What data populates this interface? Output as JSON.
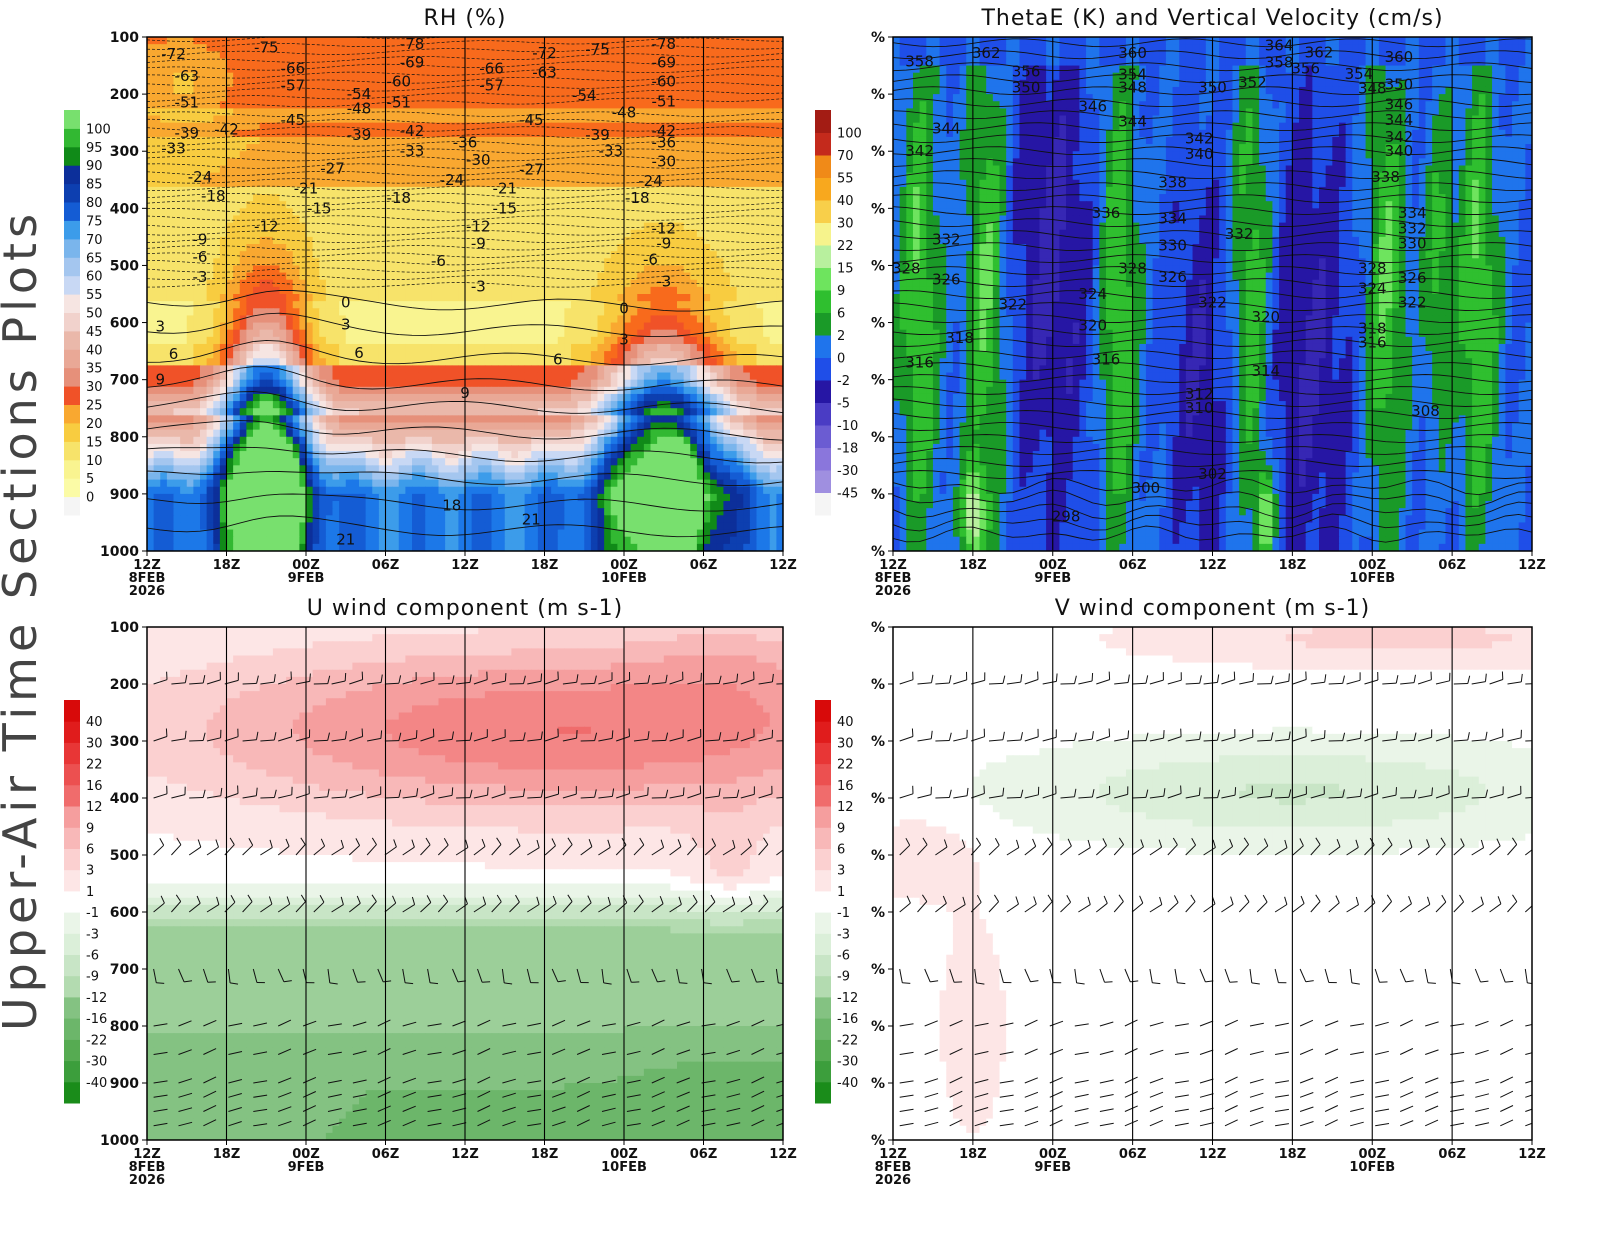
{
  "page": {
    "title": "Upper-Air Time Sections Plots"
  },
  "colors": {
    "rh": [
      "#f5f5f5",
      "#fbfba6",
      "#f9f490",
      "#f7e36a",
      "#f8cc40",
      "#f9a830",
      "#f86a1c",
      "#f05228",
      "#e6907a",
      "#e9a896",
      "#eab8aa",
      "#f1d2cc",
      "#f6e5e2",
      "#c8d8f4",
      "#a4c6ef",
      "#7ab5ec",
      "#3c9cea",
      "#1c78e8",
      "#145cd4",
      "#0d3fb0",
      "#0c2f9a",
      "#108a18",
      "#32b832",
      "#78e06e"
    ],
    "theta": [
      "#f5f5f5",
      "#9f8fe0",
      "#8a76dc",
      "#6b5cd2",
      "#4a3cc4",
      "#3627b4",
      "#2616a4",
      "#1f4ee8",
      "#1f74ec",
      "#1a9a28",
      "#2fbf2f",
      "#6ee45e",
      "#b8f09e",
      "#f6f38c",
      "#f8e470",
      "#f8cf4a",
      "#f8a81e",
      "#f08a18",
      "#c42a1c",
      "#a31c14"
    ],
    "div": [
      "#1a8c1a",
      "#3c9e3c",
      "#56ab52",
      "#6cb66a",
      "#84c282",
      "#9ccf99",
      "#b3dbb0",
      "#c8e5c6",
      "#dbefd9",
      "#eaf5e8",
      "#ffffff",
      "#fde6e6",
      "#fbd0d0",
      "#f8b8b8",
      "#f59e9e",
      "#f38686",
      "#f06c6c",
      "#ec5050",
      "#e83636",
      "#e01c1c",
      "#d80a0a"
    ]
  },
  "time_axis": {
    "ticks": [
      {
        "label": "12Z",
        "sub": "8FEB",
        "sub2": "2026"
      },
      {
        "label": "18Z",
        "sub": "",
        "sub2": ""
      },
      {
        "label": "00Z",
        "sub": "9FEB",
        "sub2": ""
      },
      {
        "label": "06Z",
        "sub": "",
        "sub2": ""
      },
      {
        "label": "12Z",
        "sub": "",
        "sub2": ""
      },
      {
        "label": "18Z",
        "sub": "",
        "sub2": ""
      },
      {
        "label": "00Z",
        "sub": "10FEB",
        "sub2": ""
      },
      {
        "label": "06Z",
        "sub": "",
        "sub2": ""
      },
      {
        "label": "12Z",
        "sub": "",
        "sub2": ""
      }
    ]
  },
  "chart_data": [
    {
      "id": "rh",
      "type": "heatmap",
      "title": "RH (%)",
      "xlabel": "",
      "ylabel": "",
      "x_range_hours": [
        0,
        48
      ],
      "ylim": [
        1000,
        100
      ],
      "y_ticks": [
        "100",
        "200",
        "300",
        "400",
        "500",
        "600",
        "700",
        "800",
        "900",
        "1000"
      ],
      "colorbar": {
        "levels": [
          "0",
          "5",
          "10",
          "15",
          "20",
          "25",
          "30",
          "35",
          "40",
          "45",
          "50",
          "55",
          "60",
          "65",
          "70",
          "75",
          "80",
          "85",
          "90",
          "95",
          "100"
        ]
      },
      "contour_labels": [
        {
          "text": "-72",
          "t": 2,
          "p": 130
        },
        {
          "text": "-75",
          "t": 9,
          "p": 118
        },
        {
          "text": "-78",
          "t": 20,
          "p": 112
        },
        {
          "text": "-72",
          "t": 30,
          "p": 128
        },
        {
          "text": "-75",
          "t": 34,
          "p": 122
        },
        {
          "text": "-78",
          "t": 39,
          "p": 112
        },
        {
          "text": "-63",
          "t": 3,
          "p": 168
        },
        {
          "text": "-66",
          "t": 11,
          "p": 155
        },
        {
          "text": "-69",
          "t": 20,
          "p": 145
        },
        {
          "text": "-66",
          "t": 26,
          "p": 155
        },
        {
          "text": "-63",
          "t": 30,
          "p": 162
        },
        {
          "text": "-69",
          "t": 39,
          "p": 145
        },
        {
          "text": "-57",
          "t": 11,
          "p": 185
        },
        {
          "text": "-60",
          "t": 19,
          "p": 178
        },
        {
          "text": "-57",
          "t": 26,
          "p": 185
        },
        {
          "text": "-60",
          "t": 39,
          "p": 178
        },
        {
          "text": "-51",
          "t": 3,
          "p": 215
        },
        {
          "text": "-54",
          "t": 16,
          "p": 200
        },
        {
          "text": "-51",
          "t": 19,
          "p": 215
        },
        {
          "text": "-54",
          "t": 33,
          "p": 202
        },
        {
          "text": "-48",
          "t": 36,
          "p": 232
        },
        {
          "text": "-51",
          "t": 39,
          "p": 213
        },
        {
          "text": "-48",
          "t": 16,
          "p": 225
        },
        {
          "text": "-45",
          "t": 11,
          "p": 245
        },
        {
          "text": "-45",
          "t": 29,
          "p": 245
        },
        {
          "text": "-39",
          "t": 3,
          "p": 268
        },
        {
          "text": "-42",
          "t": 6,
          "p": 262
        },
        {
          "text": "-39",
          "t": 16,
          "p": 272
        },
        {
          "text": "-42",
          "t": 20,
          "p": 265
        },
        {
          "text": "-39",
          "t": 34,
          "p": 272
        },
        {
          "text": "-42",
          "t": 39,
          "p": 265
        },
        {
          "text": "-33",
          "t": 2,
          "p": 295
        },
        {
          "text": "-36",
          "t": 24,
          "p": 285
        },
        {
          "text": "-33",
          "t": 20,
          "p": 300
        },
        {
          "text": "-33",
          "t": 35,
          "p": 300
        },
        {
          "text": "-36",
          "t": 39,
          "p": 285
        },
        {
          "text": "-30",
          "t": 25,
          "p": 315
        },
        {
          "text": "-30",
          "t": 39,
          "p": 318
        },
        {
          "text": "-27",
          "t": 14,
          "p": 330
        },
        {
          "text": "-27",
          "t": 29,
          "p": 332
        },
        {
          "text": "-24",
          "t": 4,
          "p": 345
        },
        {
          "text": "-24",
          "t": 23,
          "p": 350
        },
        {
          "text": "-24",
          "t": 38,
          "p": 352
        },
        {
          "text": "-21",
          "t": 12,
          "p": 365
        },
        {
          "text": "-21",
          "t": 27,
          "p": 365
        },
        {
          "text": "-18",
          "t": 5,
          "p": 378
        },
        {
          "text": "-18",
          "t": 19,
          "p": 382
        },
        {
          "text": "-18",
          "t": 37,
          "p": 382
        },
        {
          "text": "-15",
          "t": 13,
          "p": 400
        },
        {
          "text": "-15",
          "t": 27,
          "p": 400
        },
        {
          "text": "-12",
          "t": 9,
          "p": 432
        },
        {
          "text": "-12",
          "t": 25,
          "p": 432
        },
        {
          "text": "-12",
          "t": 39,
          "p": 435
        },
        {
          "text": "-9",
          "t": 4,
          "p": 455
        },
        {
          "text": "-9",
          "t": 25,
          "p": 462
        },
        {
          "text": "-9",
          "t": 39,
          "p": 462
        },
        {
          "text": "-6",
          "t": 4,
          "p": 485
        },
        {
          "text": "-6",
          "t": 22,
          "p": 492
        },
        {
          "text": "-6",
          "t": 38,
          "p": 490
        },
        {
          "text": "-3",
          "t": 4,
          "p": 520
        },
        {
          "text": "-3",
          "t": 25,
          "p": 537
        },
        {
          "text": "-3",
          "t": 39,
          "p": 528
        },
        {
          "text": "0",
          "t": 15,
          "p": 565
        },
        {
          "text": "0",
          "t": 36,
          "p": 575
        },
        {
          "text": "3",
          "t": 1,
          "p": 607
        },
        {
          "text": "3",
          "t": 15,
          "p": 603
        },
        {
          "text": "3",
          "t": 36,
          "p": 630
        },
        {
          "text": "6",
          "t": 2,
          "p": 655
        },
        {
          "text": "6",
          "t": 16,
          "p": 653
        },
        {
          "text": "6",
          "t": 31,
          "p": 665
        },
        {
          "text": "9",
          "t": 1,
          "p": 700
        },
        {
          "text": "9",
          "t": 24,
          "p": 723
        },
        {
          "text": "18",
          "t": 23,
          "p": 920
        },
        {
          "text": "21",
          "t": 29,
          "p": 945
        },
        {
          "text": "21",
          "t": 15,
          "p": 980
        }
      ]
    },
    {
      "id": "thetae",
      "type": "heatmap",
      "title": "ThetaE (K) and Vertical Velocity (cm/s)",
      "xlabel": "",
      "ylabel": "",
      "x_range_hours": [
        0,
        48
      ],
      "ylim": [
        1000,
        100
      ],
      "y_ticks": [
        "%",
        "%",
        "%",
        "%",
        "%",
        "%",
        "%",
        "%",
        "%",
        "%"
      ],
      "colorbar": {
        "levels": [
          "-45",
          "-30",
          "-18",
          "-10",
          "-5",
          "-2",
          "0",
          "2",
          "6",
          "9",
          "15",
          "22",
          "30",
          "40",
          "55",
          "70",
          "100"
        ]
      },
      "contour_labels": [
        {
          "text": "364",
          "t": 29,
          "p": 115
        },
        {
          "text": "362",
          "t": 7,
          "p": 128
        },
        {
          "text": "360",
          "t": 18,
          "p": 128
        },
        {
          "text": "362",
          "t": 32,
          "p": 127
        },
        {
          "text": "360",
          "t": 38,
          "p": 135
        },
        {
          "text": "358",
          "t": 2,
          "p": 143
        },
        {
          "text": "356",
          "t": 10,
          "p": 160
        },
        {
          "text": "358",
          "t": 29,
          "p": 145
        },
        {
          "text": "356",
          "t": 31,
          "p": 155
        },
        {
          "text": "354",
          "t": 18,
          "p": 166
        },
        {
          "text": "354",
          "t": 35,
          "p": 165
        },
        {
          "text": "352",
          "t": 27,
          "p": 180
        },
        {
          "text": "350",
          "t": 10,
          "p": 188
        },
        {
          "text": "348",
          "t": 18,
          "p": 188
        },
        {
          "text": "350",
          "t": 24,
          "p": 188
        },
        {
          "text": "348",
          "t": 36,
          "p": 190
        },
        {
          "text": "350",
          "t": 38,
          "p": 183
        },
        {
          "text": "346",
          "t": 15,
          "p": 222
        },
        {
          "text": "346",
          "t": 38,
          "p": 218
        },
        {
          "text": "344",
          "t": 18,
          "p": 248
        },
        {
          "text": "344",
          "t": 4,
          "p": 260
        },
        {
          "text": "344",
          "t": 38,
          "p": 245
        },
        {
          "text": "342",
          "t": 23,
          "p": 278
        },
        {
          "text": "342",
          "t": 38,
          "p": 275
        },
        {
          "text": "342",
          "t": 2,
          "p": 300
        },
        {
          "text": "340",
          "t": 23,
          "p": 305
        },
        {
          "text": "340",
          "t": 38,
          "p": 300
        },
        {
          "text": "338",
          "t": 21,
          "p": 355
        },
        {
          "text": "338",
          "t": 37,
          "p": 345
        },
        {
          "text": "336",
          "t": 16,
          "p": 408
        },
        {
          "text": "334",
          "t": 21,
          "p": 418
        },
        {
          "text": "334",
          "t": 39,
          "p": 408
        },
        {
          "text": "332",
          "t": 26,
          "p": 445
        },
        {
          "text": "332",
          "t": 39,
          "p": 435
        },
        {
          "text": "332",
          "t": 4,
          "p": 455
        },
        {
          "text": "330",
          "t": 21,
          "p": 465
        },
        {
          "text": "330",
          "t": 39,
          "p": 462
        },
        {
          "text": "328",
          "t": 1,
          "p": 505
        },
        {
          "text": "328",
          "t": 18,
          "p": 505
        },
        {
          "text": "328",
          "t": 36,
          "p": 505
        },
        {
          "text": "326",
          "t": 4,
          "p": 525
        },
        {
          "text": "326",
          "t": 21,
          "p": 520
        },
        {
          "text": "326",
          "t": 39,
          "p": 522
        },
        {
          "text": "324",
          "t": 15,
          "p": 550
        },
        {
          "text": "324",
          "t": 36,
          "p": 540
        },
        {
          "text": "322",
          "t": 9,
          "p": 568
        },
        {
          "text": "322",
          "t": 24,
          "p": 565
        },
        {
          "text": "322",
          "t": 39,
          "p": 565
        },
        {
          "text": "320",
          "t": 28,
          "p": 590
        },
        {
          "text": "320",
          "t": 15,
          "p": 605
        },
        {
          "text": "318",
          "t": 36,
          "p": 610
        },
        {
          "text": "318",
          "t": 5,
          "p": 627
        },
        {
          "text": "316",
          "t": 36,
          "p": 635
        },
        {
          "text": "316",
          "t": 16,
          "p": 665
        },
        {
          "text": "316",
          "t": 2,
          "p": 670
        },
        {
          "text": "314",
          "t": 28,
          "p": 685
        },
        {
          "text": "312",
          "t": 23,
          "p": 725
        },
        {
          "text": "310",
          "t": 23,
          "p": 750
        },
        {
          "text": "308",
          "t": 40,
          "p": 755
        },
        {
          "text": "302",
          "t": 24,
          "p": 865
        },
        {
          "text": "300",
          "t": 19,
          "p": 890
        },
        {
          "text": "298",
          "t": 13,
          "p": 940
        }
      ]
    },
    {
      "id": "uwind",
      "type": "heatmap",
      "title": "U wind component (m s-1)",
      "xlabel": "",
      "ylabel": "",
      "x_range_hours": [
        0,
        48
      ],
      "ylim": [
        1000,
        100
      ],
      "y_ticks": [
        "100",
        "200",
        "300",
        "400",
        "500",
        "600",
        "700",
        "800",
        "900",
        "1000"
      ],
      "colorbar": {
        "levels": [
          "-40",
          "-30",
          "-22",
          "-16",
          "-12",
          "-9",
          "-6",
          "-3",
          "-1",
          "1",
          "3",
          "6",
          "9",
          "12",
          "16",
          "22",
          "30",
          "40"
        ]
      }
    },
    {
      "id": "vwind",
      "type": "heatmap",
      "title": "V wind component (m s-1)",
      "xlabel": "",
      "ylabel": "",
      "x_range_hours": [
        0,
        48
      ],
      "ylim": [
        1000,
        100
      ],
      "y_ticks": [
        "%",
        "%",
        "%",
        "%",
        "%",
        "%",
        "%",
        "%",
        "%",
        "%"
      ],
      "colorbar": {
        "levels": [
          "-40",
          "-30",
          "-22",
          "-16",
          "-12",
          "-9",
          "-6",
          "-3",
          "-1",
          "1",
          "3",
          "6",
          "9",
          "12",
          "16",
          "22",
          "30",
          "40"
        ]
      }
    }
  ]
}
